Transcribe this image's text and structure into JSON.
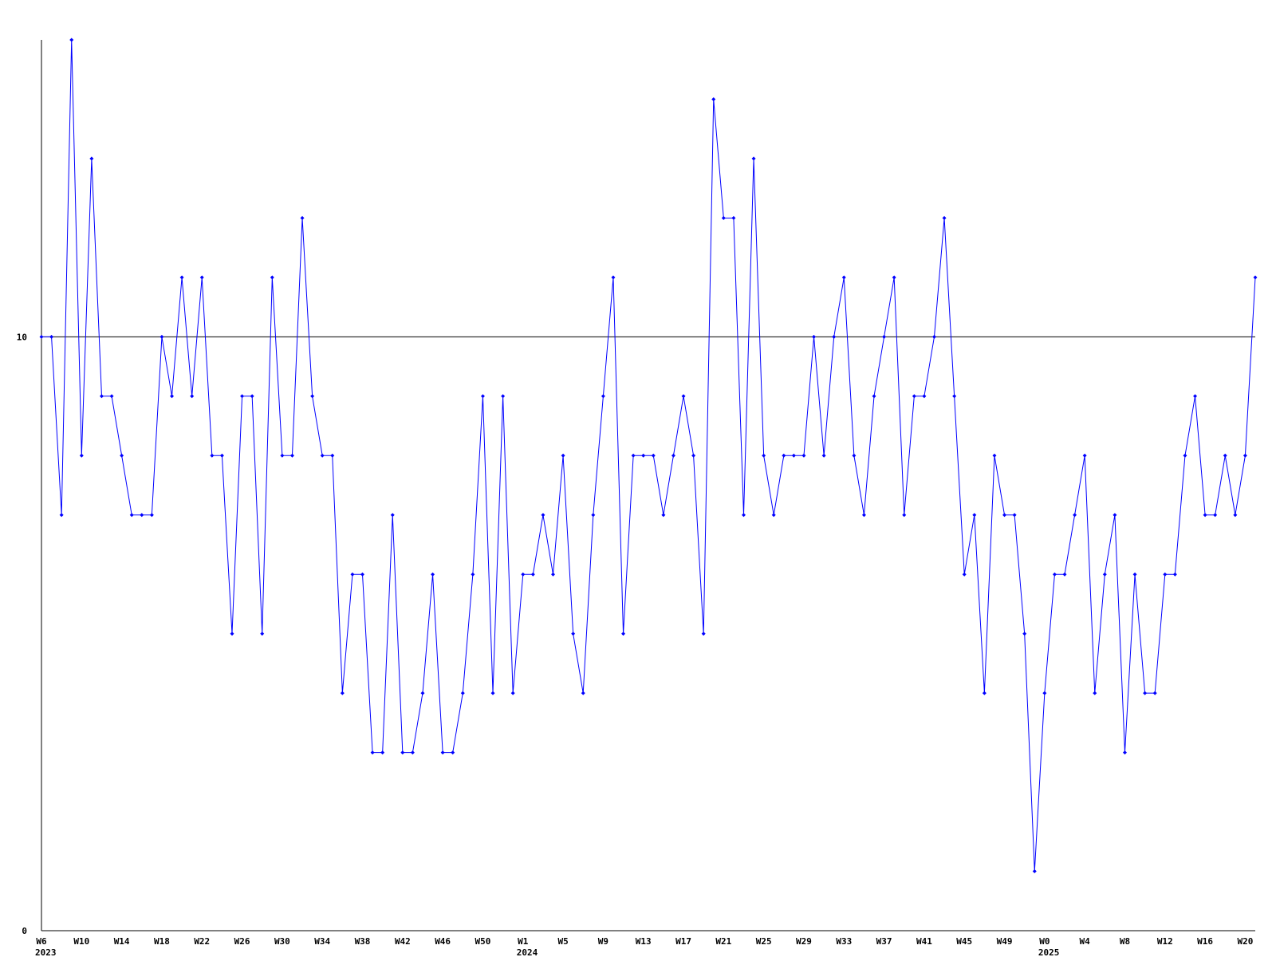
{
  "chart_data": {
    "type": "line",
    "color": "#0000ff",
    "categories": [
      "W6",
      null,
      null,
      null,
      "W10",
      null,
      null,
      null,
      "W14",
      null,
      null,
      null,
      "W18",
      null,
      null,
      null,
      "W22",
      null,
      null,
      null,
      "W26",
      null,
      null,
      null,
      "W30",
      null,
      null,
      null,
      "W34",
      null,
      null,
      null,
      "W38",
      null,
      null,
      null,
      "W42",
      null,
      null,
      null,
      "W46",
      null,
      null,
      null,
      "W50",
      null,
      null,
      null,
      "W1",
      null,
      null,
      null,
      "W5",
      null,
      null,
      null,
      "W9",
      null,
      null,
      null,
      "W13",
      null,
      null,
      null,
      "W17",
      null,
      null,
      null,
      "W21",
      null,
      null,
      null,
      "W25",
      null,
      null,
      null,
      "W29",
      null,
      null,
      null,
      "W33",
      null,
      null,
      null,
      "W37",
      null,
      null,
      null,
      "W41",
      null,
      null,
      null,
      "W45",
      null,
      null,
      null,
      "W49",
      null,
      null,
      null,
      "W0",
      null,
      null,
      null,
      "W4",
      null,
      null,
      null,
      "W8",
      null,
      null,
      null,
      "W12",
      null,
      null,
      null,
      "W16",
      null,
      null,
      null,
      "W20",
      null
    ],
    "category_years": [
      "2023",
      null,
      null,
      null,
      null,
      null,
      null,
      null,
      null,
      null,
      null,
      null,
      null,
      null,
      null,
      null,
      null,
      null,
      null,
      null,
      null,
      null,
      null,
      null,
      null,
      null,
      null,
      null,
      null,
      null,
      null,
      null,
      null,
      null,
      null,
      null,
      null,
      null,
      null,
      null,
      null,
      null,
      null,
      null,
      null,
      null,
      null,
      null,
      "2024",
      null,
      null,
      null,
      null,
      null,
      null,
      null,
      null,
      null,
      null,
      null,
      null,
      null,
      null,
      null,
      null,
      null,
      null,
      null,
      null,
      null,
      null,
      null,
      null,
      null,
      null,
      null,
      null,
      null,
      null,
      null,
      null,
      null,
      null,
      null,
      null,
      null,
      null,
      null,
      null,
      null,
      null,
      null,
      null,
      null,
      null,
      null,
      null,
      null,
      null,
      null,
      "2025",
      null,
      null,
      null,
      null,
      null,
      null,
      null,
      null,
      null,
      null,
      null,
      null,
      null,
      null,
      null,
      null,
      null,
      null,
      null,
      null,
      null
    ],
    "values": [
      10,
      10,
      7,
      15,
      8,
      13,
      9,
      9,
      8,
      7,
      7,
      7,
      10,
      9,
      11,
      9,
      11,
      8,
      8,
      5,
      9,
      9,
      5,
      11,
      8,
      8,
      12,
      9,
      8,
      8,
      4,
      6,
      6,
      3,
      3,
      7,
      3,
      3,
      4,
      6,
      3,
      3,
      4,
      6,
      9,
      4,
      9,
      4,
      6,
      6,
      7,
      6,
      8,
      5,
      4,
      7,
      9,
      11,
      5,
      8,
      8,
      8,
      7,
      8,
      9,
      8,
      5,
      14,
      12,
      12,
      7,
      13,
      8,
      7,
      8,
      8,
      8,
      10,
      8,
      10,
      11,
      8,
      7,
      9,
      10,
      11,
      7,
      9,
      9,
      10,
      12,
      9,
      6,
      7,
      4,
      8,
      7,
      7,
      5,
      1,
      4,
      6,
      6,
      7,
      8,
      4,
      6,
      7,
      3,
      6,
      4,
      4,
      6,
      6,
      8,
      9,
      7,
      7,
      8,
      7,
      8,
      11
    ],
    "ylim": [
      0,
      15
    ],
    "yticks": [
      0,
      10
    ],
    "grid": true
  }
}
